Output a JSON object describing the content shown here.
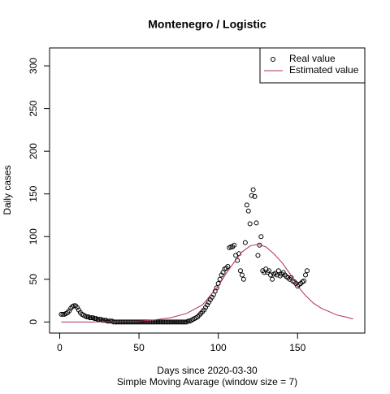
{
  "chart_data": {
    "type": "scatter",
    "title": "Montenegro / Logistic",
    "xlabel": "Days since 2020-03-30",
    "xlabel2": "Simple Moving Avarage (window size = 7)",
    "ylabel": "Daily cases",
    "xlim": [
      -6.4,
      192.4
    ],
    "ylim": [
      -13,
      321
    ],
    "xticks": [
      0,
      50,
      100,
      150
    ],
    "yticks": [
      0,
      50,
      100,
      150,
      200,
      250,
      300
    ],
    "legend": "top-right",
    "series": [
      {
        "name": "Real value",
        "kind": "points",
        "color": "#000000",
        "x": [
          1,
          2,
          3,
          4,
          5,
          6,
          7,
          8,
          9,
          10,
          11,
          12,
          13,
          14,
          15,
          16,
          17,
          18,
          19,
          20,
          21,
          22,
          23,
          24,
          25,
          26,
          27,
          28,
          29,
          30,
          31,
          32,
          33,
          34,
          35,
          36,
          37,
          38,
          39,
          40,
          41,
          42,
          43,
          44,
          45,
          46,
          47,
          48,
          49,
          50,
          51,
          52,
          53,
          54,
          55,
          56,
          57,
          58,
          59,
          60,
          61,
          62,
          63,
          64,
          65,
          66,
          67,
          68,
          69,
          70,
          71,
          72,
          73,
          74,
          75,
          76,
          77,
          78,
          79,
          80,
          81,
          82,
          83,
          84,
          85,
          86,
          87,
          88,
          89,
          90,
          91,
          92,
          93,
          94,
          95,
          96,
          97,
          98,
          99,
          100,
          101,
          102,
          103,
          104,
          105,
          106,
          107,
          108,
          109,
          110,
          111,
          112,
          113,
          114,
          115,
          116,
          117,
          118,
          119,
          120,
          121,
          122,
          123,
          124,
          125,
          126,
          127,
          128,
          129,
          130,
          131,
          132,
          133,
          134,
          135,
          136,
          137,
          138,
          139,
          140,
          141,
          142,
          143,
          144,
          145,
          146,
          147,
          148,
          149,
          150,
          151,
          152,
          153,
          154,
          155,
          156
        ],
        "values": [
          9,
          9,
          9,
          10,
          11,
          13,
          16,
          18,
          19,
          19,
          17,
          14,
          11,
          9,
          8,
          7,
          6,
          6,
          5,
          5,
          5,
          4,
          4,
          3,
          3,
          3,
          2,
          2,
          2,
          1,
          1,
          1,
          1,
          0,
          0,
          0,
          0,
          0,
          0,
          0,
          0,
          0,
          0,
          0,
          0,
          0,
          0,
          0,
          0,
          0,
          0,
          0,
          0,
          0,
          0,
          0,
          0,
          0,
          0,
          0,
          0,
          0,
          0,
          0,
          0,
          0,
          0,
          0,
          0,
          0,
          0,
          0,
          0,
          0,
          0,
          0,
          0,
          0,
          0,
          0,
          1,
          1,
          2,
          3,
          4,
          5,
          6,
          8,
          10,
          12,
          14,
          17,
          20,
          23,
          26,
          29,
          32,
          36,
          40,
          45,
          50,
          55,
          58,
          62,
          63,
          65,
          87,
          88,
          88,
          90,
          78,
          72,
          80,
          60,
          55,
          50,
          93,
          137,
          130,
          115,
          148,
          155,
          147,
          116,
          78,
          90,
          100,
          60,
          58,
          62,
          58,
          60,
          55,
          50,
          56,
          57,
          55,
          60,
          54,
          56,
          58,
          55,
          53,
          52,
          50,
          52,
          48,
          47,
          45,
          42,
          44,
          45,
          47,
          48,
          55,
          60
        ]
      },
      {
        "name": "Estimated value",
        "kind": "line",
        "color": "#b0305a",
        "x": [
          1,
          10,
          20,
          30,
          40,
          50,
          60,
          70,
          80,
          90,
          100,
          105,
          110,
          115,
          120,
          125,
          130,
          135,
          140,
          145,
          150,
          155,
          160,
          165,
          170,
          175,
          180,
          185
        ],
        "values": [
          0,
          0,
          0,
          0.3,
          0.6,
          1,
          2.5,
          5,
          10,
          20,
          42,
          57,
          70,
          82,
          89,
          91,
          88,
          80,
          70,
          57,
          42,
          31,
          22,
          16,
          12,
          8,
          6,
          3.5
        ]
      }
    ]
  }
}
